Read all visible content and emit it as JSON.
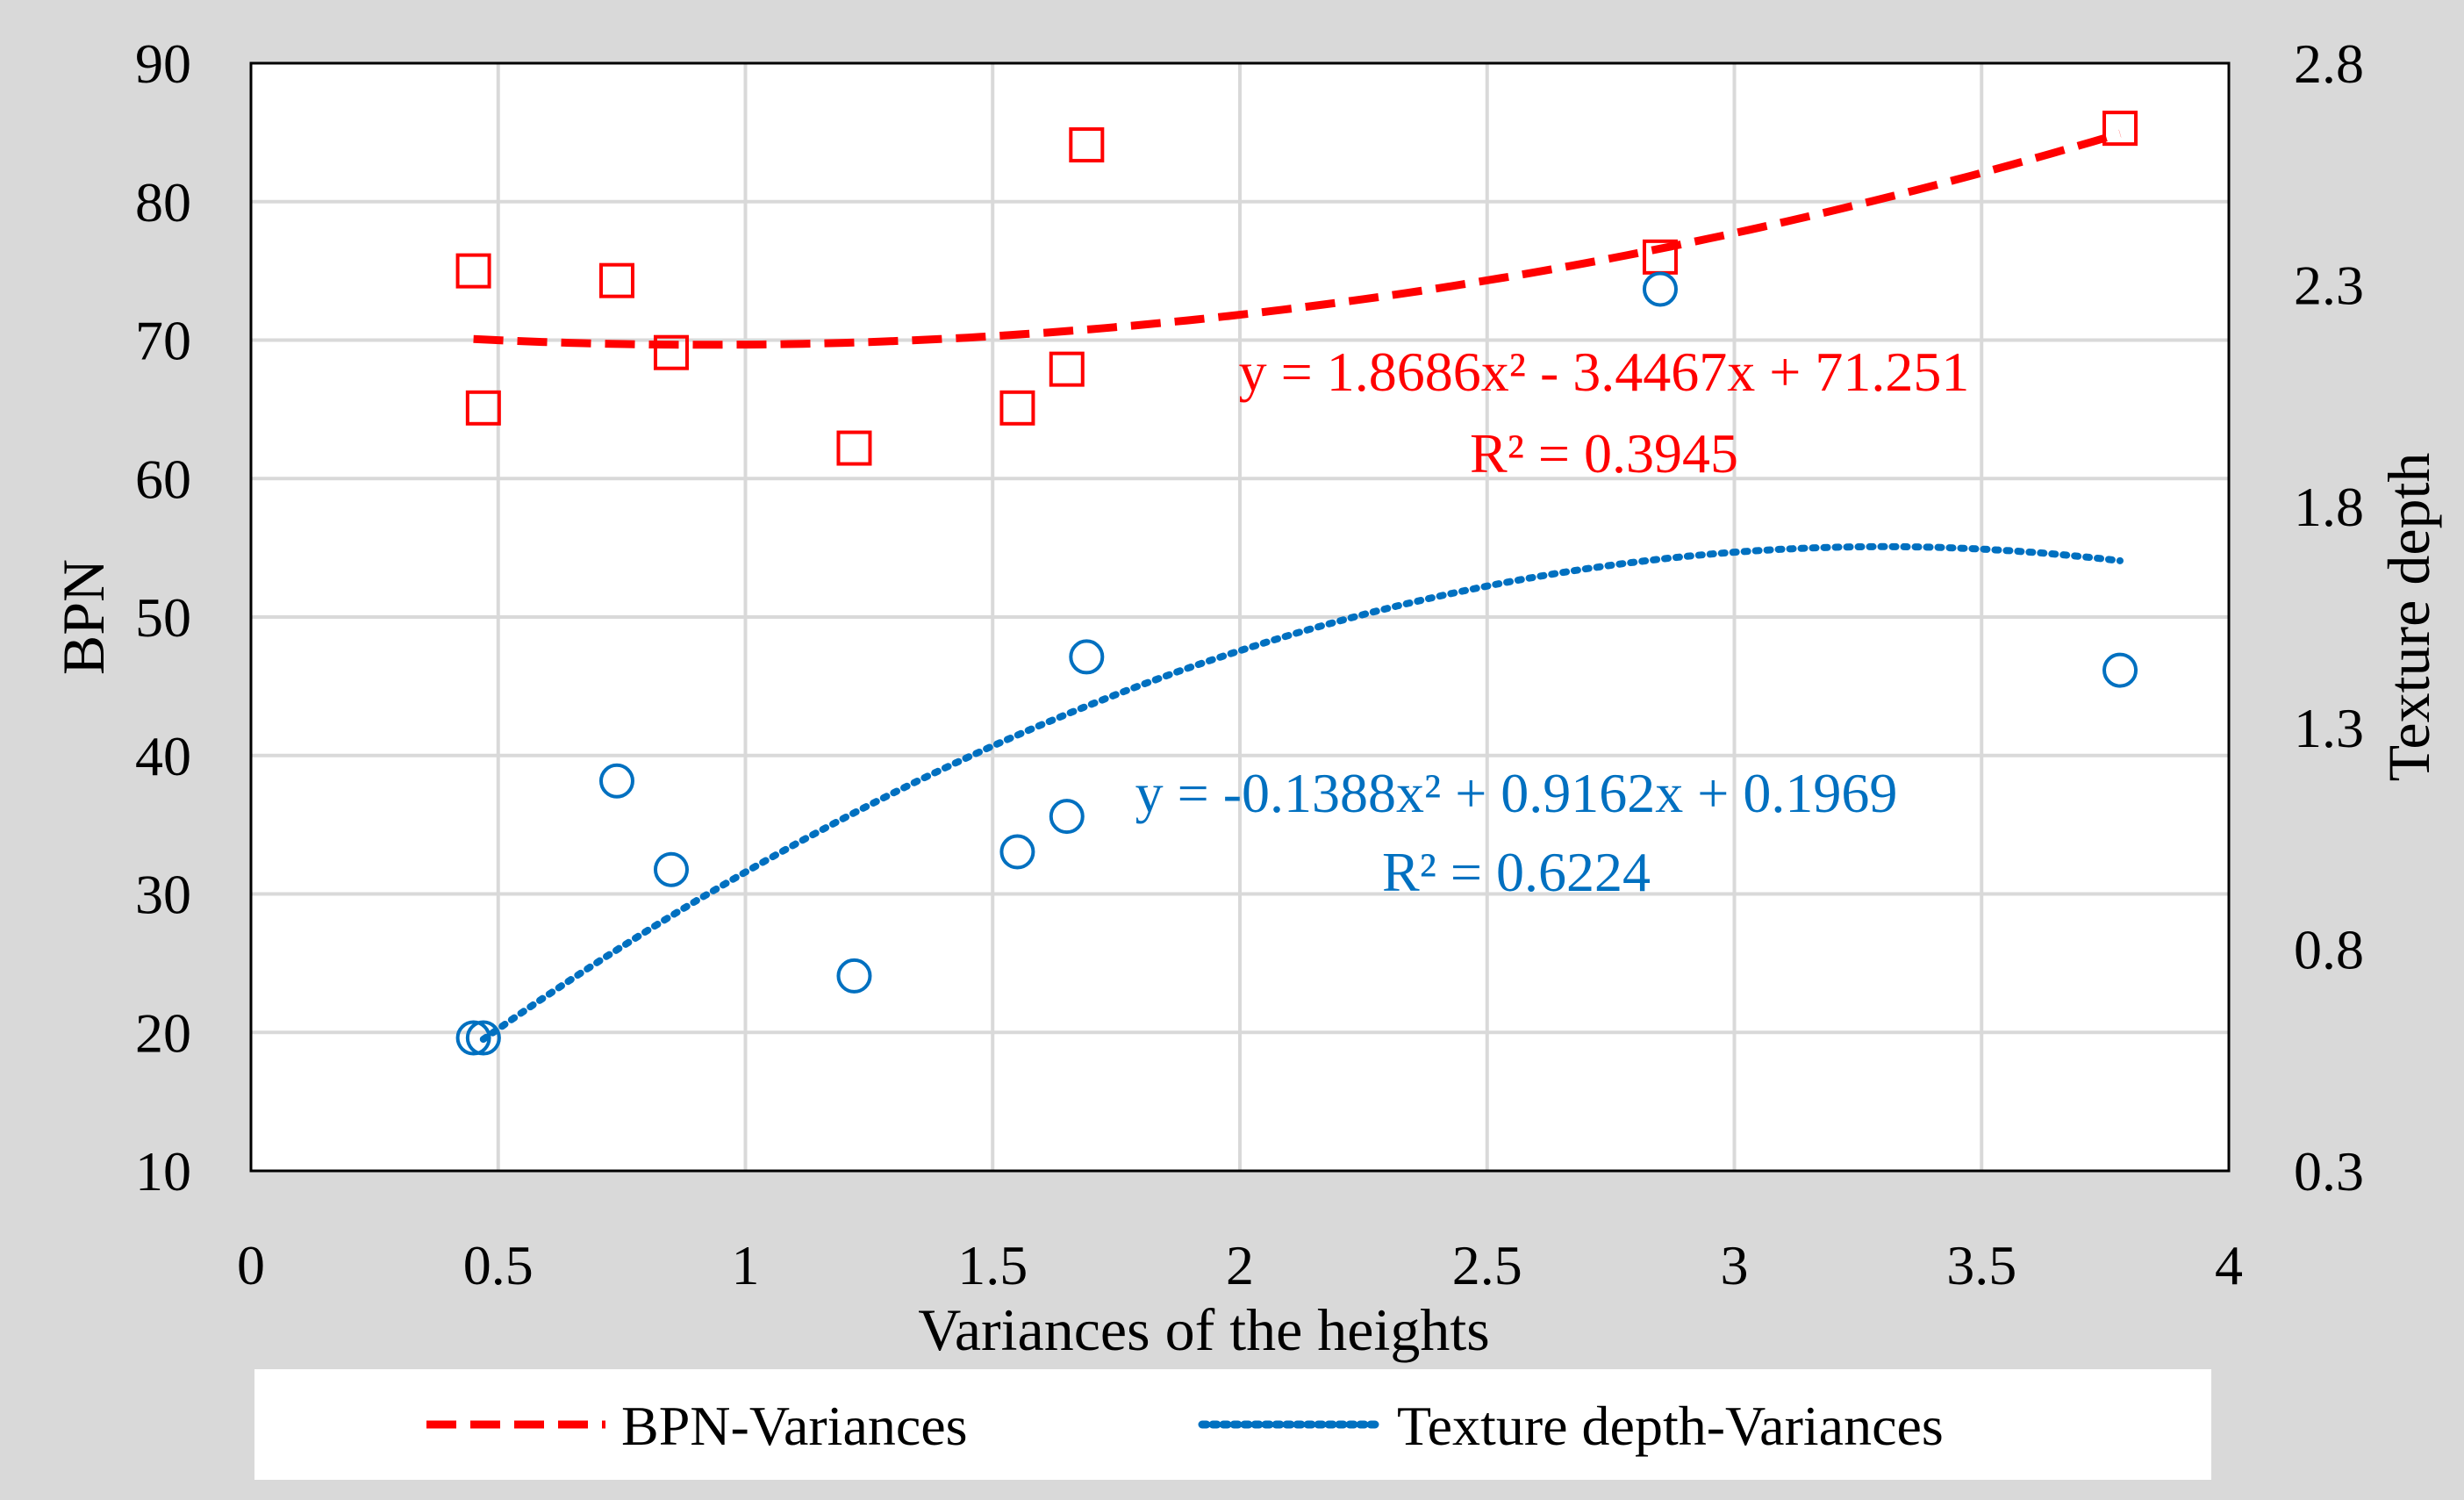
{
  "chart_data": {
    "type": "scatter",
    "title": "",
    "xlabel": "Variances of the heights",
    "ylabel_left": "BPN",
    "ylabel_right": "Texture depth",
    "xlim": [
      0,
      4
    ],
    "ylim_left": [
      10,
      90
    ],
    "ylim_right": [
      0.3,
      2.8
    ],
    "x_ticks": [
      "0",
      "0.5",
      "1",
      "1.5",
      "2",
      "2.5",
      "3",
      "3.5",
      "4"
    ],
    "y_left_ticks": [
      "10",
      "20",
      "30",
      "40",
      "50",
      "60",
      "70",
      "80",
      "90"
    ],
    "y_right_ticks": [
      "0.3",
      "0.8",
      "1.3",
      "1.8",
      "2.3",
      "2.8"
    ],
    "grid": true,
    "legend_position": "bottom",
    "series": [
      {
        "name": "BPN-Variances",
        "axis": "left",
        "marker": "square",
        "color": "#ff0000",
        "trendline": "dashed",
        "points": [
          [
            0.45,
            75.0
          ],
          [
            0.47,
            65.1
          ],
          [
            0.74,
            74.3
          ],
          [
            0.85,
            69.1
          ],
          [
            1.22,
            62.2
          ],
          [
            1.55,
            65.1
          ],
          [
            1.65,
            67.9
          ],
          [
            1.69,
            84.1
          ],
          [
            2.85,
            76.0
          ],
          [
            3.78,
            85.3
          ]
        ],
        "fit": {
          "a": 1.8686,
          "b": -3.4467,
          "c": 71.251,
          "x_range": [
            0.45,
            3.78
          ]
        },
        "equation": "y = 1.8686x² - 3.4467x + 71.251",
        "r2": "R² = 0.3945"
      },
      {
        "name": "Texture depth-Variances",
        "axis": "right",
        "marker": "circle",
        "color": "#0070c0",
        "trendline": "dotted",
        "points": [
          [
            0.45,
            0.6
          ],
          [
            0.47,
            0.6
          ],
          [
            0.74,
            1.18
          ],
          [
            0.85,
            0.98
          ],
          [
            1.22,
            0.74
          ],
          [
            1.55,
            1.02
          ],
          [
            1.65,
            1.1
          ],
          [
            1.69,
            1.46
          ],
          [
            2.85,
            2.29
          ],
          [
            3.78,
            1.43
          ]
        ],
        "fit": {
          "a": -0.1388,
          "b": 0.9162,
          "c": 0.1969,
          "x_range": [
            0.47,
            3.78
          ]
        },
        "equation": "y = -0.1388x² + 0.9162x + 0.1969",
        "r2": "R² = 0.6224"
      }
    ]
  }
}
